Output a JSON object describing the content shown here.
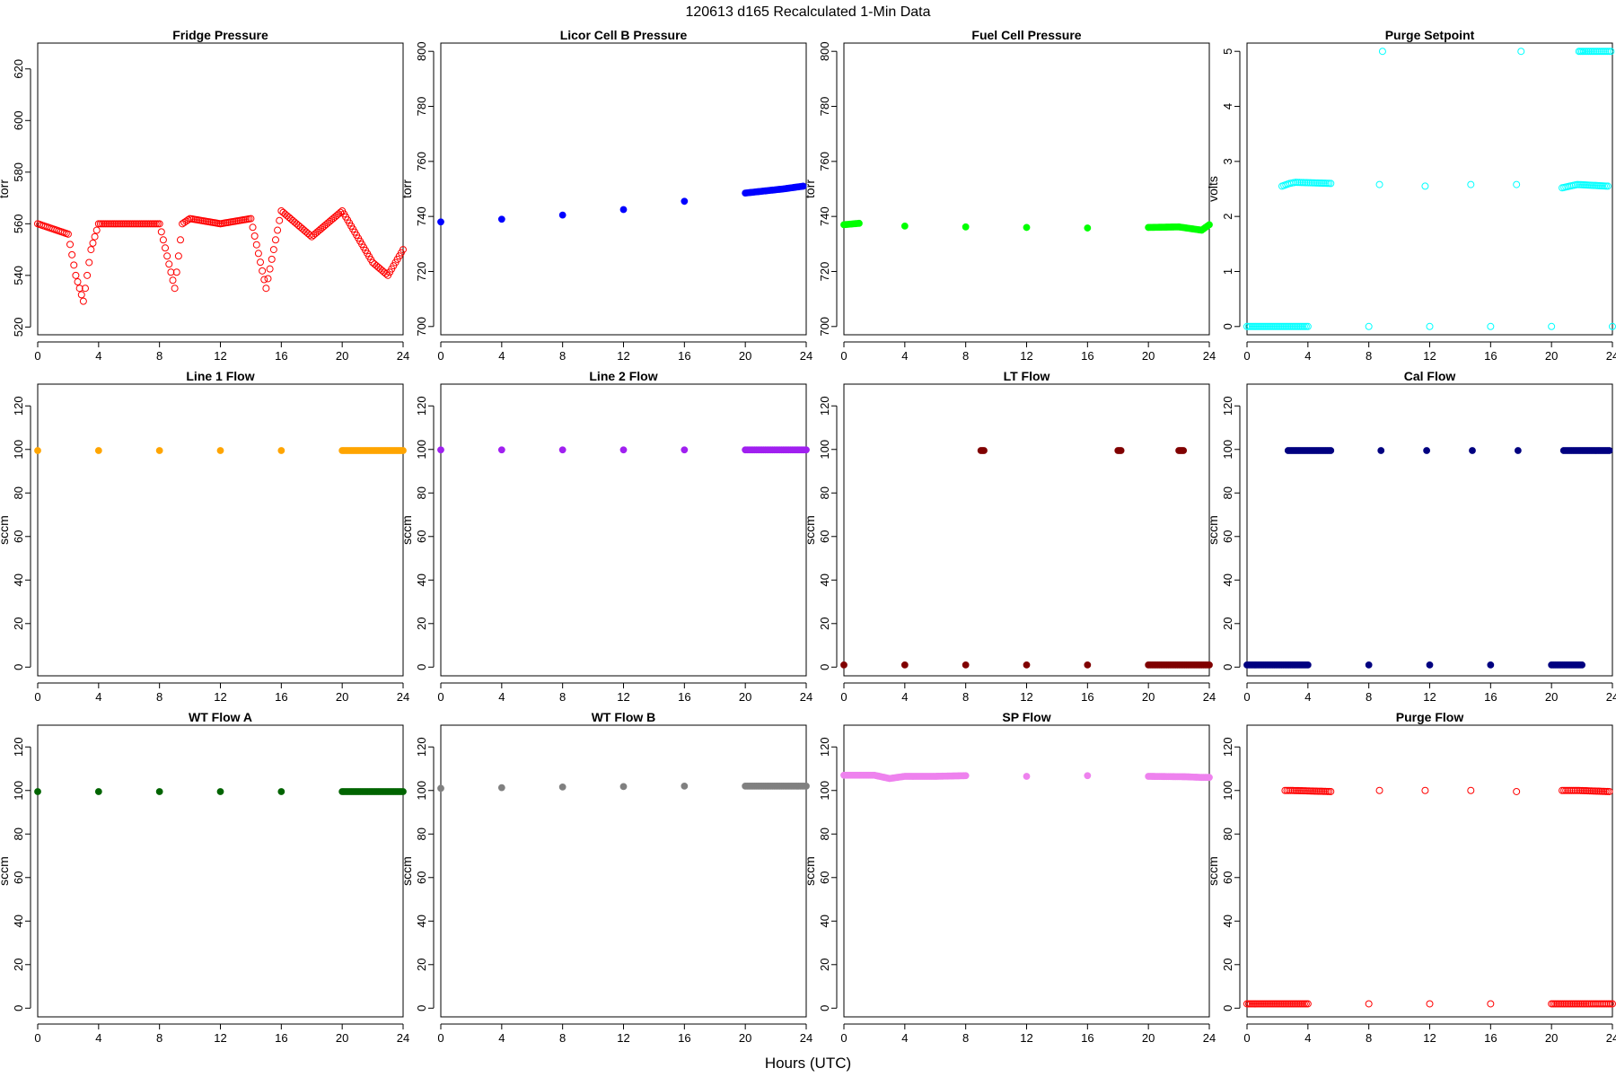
{
  "figure": {
    "title": "120613   d165   Recalculated 1-Min Data",
    "xlabel": "Hours (UTC)"
  },
  "chart_data": [
    {
      "type": "scatter",
      "title": "Fridge Pressure",
      "ylabel": "torr",
      "color": "#ff0000",
      "marker": "open",
      "xlim": [
        0,
        24
      ],
      "ylim": [
        517,
        630
      ],
      "xticks": [
        0,
        4,
        8,
        12,
        16,
        20,
        24
      ],
      "yticks": [
        520,
        540,
        560,
        580,
        600,
        620
      ],
      "series": [
        {
          "name": "",
          "x": [
            0,
            1,
            2,
            2.5,
            3,
            3.5,
            4,
            6,
            8,
            9,
            9.5,
            10,
            12,
            14,
            15,
            16,
            17,
            18,
            20,
            22,
            23,
            24
          ],
          "y": [
            560,
            558,
            556,
            540,
            530,
            550,
            560,
            560,
            560,
            535,
            560,
            562,
            560,
            562,
            535,
            565,
            560,
            555,
            565,
            545,
            540,
            550
          ]
        }
      ]
    },
    {
      "type": "scatter",
      "title": "Licor Cell B Pressure",
      "ylabel": "torr",
      "color": "#0000ff",
      "marker": "filled",
      "xlim": [
        0,
        24
      ],
      "ylim": [
        697,
        803
      ],
      "xticks": [
        0,
        4,
        8,
        12,
        16,
        20,
        24
      ],
      "yticks": [
        700,
        720,
        740,
        760,
        780,
        800
      ],
      "series": [
        {
          "name": "",
          "x": [
            0,
            4,
            8,
            12,
            16,
            20,
            22.5,
            23.8
          ],
          "y": [
            738,
            739,
            740.5,
            742.5,
            745.5,
            748.5,
            750,
            751
          ]
        }
      ]
    },
    {
      "type": "scatter",
      "title": "Fuel Cell Pressure",
      "ylabel": "torr",
      "color": "#00ff00",
      "marker": "filled",
      "xlim": [
        0,
        24
      ],
      "ylim": [
        697,
        803
      ],
      "xticks": [
        0,
        4,
        8,
        12,
        16,
        20,
        24
      ],
      "yticks": [
        700,
        720,
        740,
        760,
        780,
        800
      ],
      "series": [
        {
          "name": "",
          "x": [
            0,
            1,
            4,
            8,
            12,
            16,
            20,
            22,
            23.5,
            24
          ],
          "y": [
            737,
            737.5,
            736.5,
            736.2,
            736,
            735.8,
            736,
            736.2,
            735,
            737
          ]
        }
      ]
    },
    {
      "type": "scatter",
      "title": "Purge Setpoint",
      "ylabel": "volts",
      "color": "#00ffff",
      "marker": "open",
      "xlim": [
        0,
        24
      ],
      "ylim": [
        -0.15,
        5.15
      ],
      "xticks": [
        0,
        4,
        8,
        12,
        16,
        20,
        24
      ],
      "yticks": [
        0,
        1,
        2,
        3,
        4,
        5
      ],
      "series": [
        {
          "name": "",
          "x": [
            0,
            2,
            4,
            8,
            12,
            16,
            20,
            24,
            2.3,
            2.8,
            3.2,
            5.5,
            8.7,
            11.7,
            14.7,
            17.7,
            20.7,
            21.7,
            23.7,
            8.9,
            18,
            21.8,
            22.1,
            22.8,
            23.9
          ],
          "y": [
            0,
            0,
            0,
            0,
            0,
            0,
            0,
            0,
            2.55,
            2.6,
            2.62,
            2.6,
            2.58,
            2.55,
            2.58,
            2.58,
            2.52,
            2.58,
            2.55,
            5,
            5,
            5,
            5,
            5,
            5
          ]
        }
      ]
    },
    {
      "type": "scatter",
      "title": "Line 1 Flow",
      "ylabel": "sccm",
      "color": "#ffa500",
      "marker": "filled",
      "xlim": [
        0,
        24
      ],
      "ylim": [
        -4,
        130
      ],
      "xticks": [
        0,
        4,
        8,
        12,
        16,
        20,
        24
      ],
      "yticks": [
        0,
        20,
        40,
        60,
        80,
        100,
        120
      ],
      "series": [
        {
          "name": "",
          "x": [
            0,
            4,
            8,
            12,
            16,
            20,
            22.5,
            23.3,
            24
          ],
          "y": [
            99.5,
            99.5,
            99.5,
            99.5,
            99.5,
            99.5,
            99.5,
            99.5,
            99.5
          ]
        }
      ]
    },
    {
      "type": "scatter",
      "title": "Line 2 Flow",
      "ylabel": "sccm",
      "color": "#a020f0",
      "marker": "filled",
      "xlim": [
        0,
        24
      ],
      "ylim": [
        -4,
        130
      ],
      "xticks": [
        0,
        4,
        8,
        12,
        16,
        20,
        24
      ],
      "yticks": [
        0,
        20,
        40,
        60,
        80,
        100,
        120
      ],
      "series": [
        {
          "name": "",
          "x": [
            0,
            4,
            8,
            12,
            16,
            20,
            22.5,
            23.3,
            24
          ],
          "y": [
            99.8,
            99.8,
            99.8,
            99.8,
            99.8,
            99.8,
            99.8,
            99.8,
            99.8
          ]
        }
      ]
    },
    {
      "type": "scatter",
      "title": "LT Flow",
      "ylabel": "sccm",
      "color": "#800000",
      "marker": "filled",
      "xlim": [
        0,
        24
      ],
      "ylim": [
        -4,
        130
      ],
      "xticks": [
        0,
        4,
        8,
        12,
        16,
        20,
        24
      ],
      "yticks": [
        0,
        20,
        40,
        60,
        80,
        100,
        120
      ],
      "series": [
        {
          "name": "",
          "x": [
            0,
            4,
            8,
            12,
            16,
            20,
            22.5,
            23.5,
            24,
            9,
            9.2,
            18,
            18.2,
            22,
            22.3
          ],
          "y": [
            1,
            1,
            1,
            1,
            1,
            1,
            1,
            1,
            1,
            99.5,
            99.5,
            99.5,
            99.5,
            99.5,
            99.5
          ]
        }
      ]
    },
    {
      "type": "scatter",
      "title": "Cal Flow",
      "ylabel": "sccm",
      "color": "#000080",
      "marker": "filled",
      "xlim": [
        0,
        24
      ],
      "ylim": [
        -4,
        130
      ],
      "xticks": [
        0,
        4,
        8,
        12,
        16,
        20,
        24
      ],
      "yticks": [
        0,
        20,
        40,
        60,
        80,
        100,
        120
      ],
      "series": [
        {
          "name": "",
          "x": [
            0,
            2.5,
            4,
            8,
            12,
            16,
            20,
            22,
            2.7,
            3.5,
            5.5,
            8.8,
            11.8,
            14.8,
            17.8,
            20.8,
            21.8,
            23.8
          ],
          "y": [
            1,
            1,
            1,
            1,
            1,
            1,
            1,
            1,
            99.5,
            99.5,
            99.5,
            99.5,
            99.5,
            99.5,
            99.5,
            99.5,
            99.5,
            99.5
          ]
        }
      ]
    },
    {
      "type": "scatter",
      "title": "WT Flow A",
      "ylabel": "sccm",
      "color": "#006400",
      "marker": "filled",
      "xlim": [
        0,
        24
      ],
      "ylim": [
        -4,
        130
      ],
      "xticks": [
        0,
        4,
        8,
        12,
        16,
        20,
        24
      ],
      "yticks": [
        0,
        20,
        40,
        60,
        80,
        100,
        120
      ],
      "series": [
        {
          "name": "",
          "x": [
            0,
            4,
            8,
            12,
            16,
            20,
            22.5,
            23.5,
            24
          ],
          "y": [
            99.5,
            99.5,
            99.5,
            99.5,
            99.5,
            99.5,
            99.5,
            99.5,
            99.5
          ]
        }
      ]
    },
    {
      "type": "scatter",
      "title": "WT Flow B",
      "ylabel": "sccm",
      "color": "#808080",
      "marker": "filled",
      "xlim": [
        0,
        24
      ],
      "ylim": [
        -4,
        130
      ],
      "xticks": [
        0,
        4,
        8,
        12,
        16,
        20,
        24
      ],
      "yticks": [
        0,
        20,
        40,
        60,
        80,
        100,
        120
      ],
      "series": [
        {
          "name": "",
          "x": [
            0,
            4,
            8,
            12,
            16,
            20,
            22.5,
            23.5,
            24
          ],
          "y": [
            101,
            101.3,
            101.6,
            101.8,
            102,
            102,
            102,
            102,
            102
          ]
        }
      ]
    },
    {
      "type": "scatter",
      "title": "SP Flow",
      "ylabel": "sccm",
      "color": "#ee82ee",
      "marker": "filled",
      "xlim": [
        0,
        24
      ],
      "ylim": [
        -4,
        130
      ],
      "xticks": [
        0,
        4,
        8,
        12,
        16,
        20,
        24
      ],
      "yticks": [
        0,
        20,
        40,
        60,
        80,
        100,
        120
      ],
      "series": [
        {
          "name": "",
          "x": [
            0,
            2,
            3,
            4,
            6,
            8,
            12,
            16,
            20,
            22.5,
            23.5,
            24
          ],
          "y": [
            107,
            107,
            105.5,
            106.5,
            106.5,
            106.8,
            106.5,
            106.8,
            106.5,
            106.3,
            106,
            106
          ]
        }
      ]
    },
    {
      "type": "scatter",
      "title": "Purge Flow",
      "ylabel": "sccm",
      "color": "#ff0000",
      "marker": "open",
      "xlim": [
        0,
        24
      ],
      "ylim": [
        -4,
        130
      ],
      "xticks": [
        0,
        4,
        8,
        12,
        16,
        20,
        24
      ],
      "yticks": [
        0,
        20,
        40,
        60,
        80,
        100,
        120
      ],
      "series": [
        {
          "name": "",
          "x": [
            0,
            2,
            4,
            8,
            12,
            16,
            20,
            22.5,
            23.5,
            24,
            2.5,
            3,
            5.5,
            8.7,
            11.7,
            14.7,
            17.7,
            20.7,
            21.8,
            23.8
          ],
          "y": [
            2,
            2,
            2,
            2,
            2,
            2,
            2,
            2,
            2,
            2,
            100,
            100,
            99.5,
            100,
            100,
            100,
            99.5,
            100,
            100,
            99.5
          ]
        }
      ]
    }
  ]
}
